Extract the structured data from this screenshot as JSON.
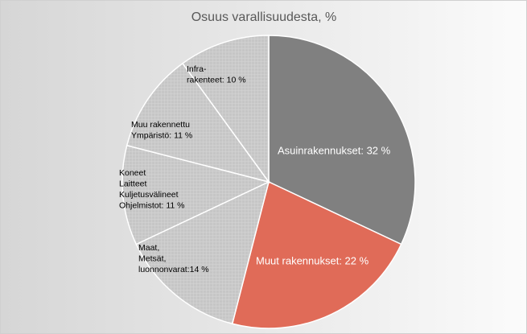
{
  "chart_data": {
    "type": "pie",
    "title": "Osuus varallisuudesta, %",
    "values": [
      32,
      22,
      14,
      11,
      11,
      10
    ],
    "value_labels": [
      [
        "Asuinrakennukset: 32 %"
      ],
      [
        "Muut rakennukset: 22 %"
      ],
      [
        "Maat,",
        "Metsät,",
        "luonnonvarat:14 %"
      ],
      [
        "Koneet",
        "Laitteet",
        "Kuljetusvälineet",
        "Ohjelmistot: 11 %"
      ],
      [
        "Muu rakennettu",
        "Ympäristö: 11 %"
      ],
      [
        "Infra-",
        "rakenteet: 10 %"
      ]
    ],
    "colors": [
      "#808080",
      "#e06b58",
      "#c9c9c9",
      "#c9c9c9",
      "#c9c9c9",
      "#c9c9c9"
    ]
  }
}
